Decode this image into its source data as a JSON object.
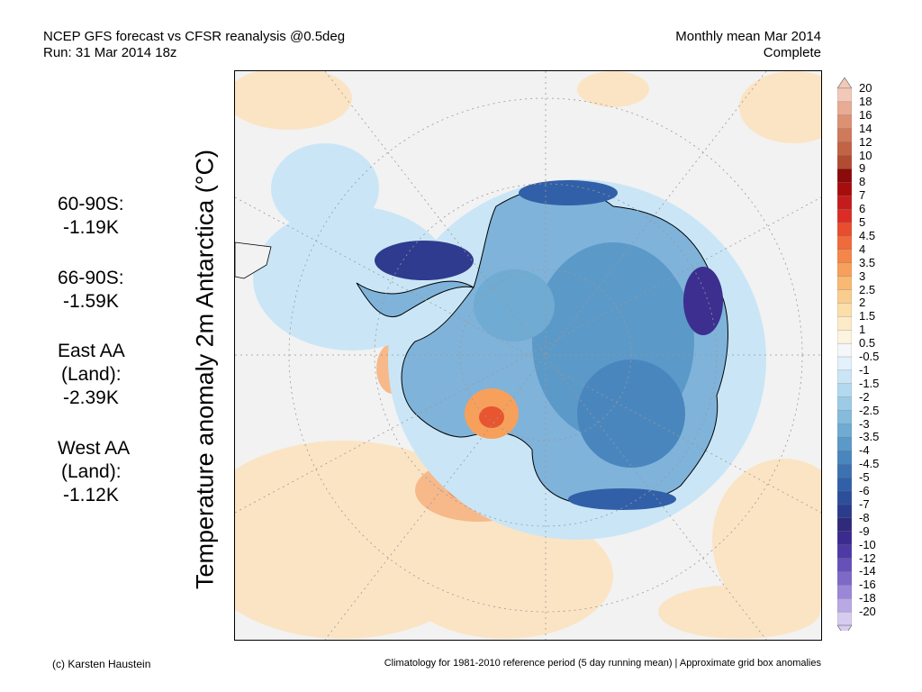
{
  "header": {
    "title_line1": "NCEP GFS forecast vs CFSR reanalysis @0.5deg",
    "title_line2": "Run: 31 Mar 2014 18z",
    "period_line1": "Monthly mean Mar 2014",
    "period_line2": "Complete"
  },
  "axis_label": "Temperature anomaly 2m Antarctica (°C)",
  "stats": [
    {
      "lines": [
        "60-90S:",
        "-1.19K"
      ]
    },
    {
      "lines": [
        "66-90S:",
        "-1.59K"
      ]
    },
    {
      "lines": [
        "East AA",
        "(Land):",
        "-2.39K"
      ]
    },
    {
      "lines": [
        "West AA",
        "(Land):",
        "-1.12K"
      ]
    }
  ],
  "colorbar": {
    "levels": [
      "20",
      "18",
      "16",
      "14",
      "12",
      "10",
      "9",
      "8",
      "7",
      "6",
      "5",
      "4.5",
      "4",
      "3.5",
      "3",
      "2.5",
      "2",
      "1.5",
      "1",
      "0.5",
      "-0.5",
      "-1",
      "-1.5",
      "-2",
      "-2.5",
      "-3",
      "-3.5",
      "-4",
      "-4.5",
      "-5",
      "-6",
      "-7",
      "-8",
      "-9",
      "-10",
      "-12",
      "-14",
      "-16",
      "-18",
      "-20"
    ],
    "colors": [
      "#f2c9b8",
      "#e8ab93",
      "#dc9173",
      "#cf7a5a",
      "#c26344",
      "#b14c32",
      "#8b0a0a",
      "#a80d0d",
      "#c41c1c",
      "#db2d25",
      "#e84d2f",
      "#f06a3b",
      "#f5864a",
      "#f7a05c",
      "#f9b874",
      "#facd8f",
      "#fbdeaa",
      "#fcebc6",
      "#fdf4df",
      "#f4f6f8",
      "#e2f1fb",
      "#cae6f6",
      "#b3d9ef",
      "#9ccbe6",
      "#85bbdc",
      "#6fabd2",
      "#5b99c8",
      "#4a86be",
      "#3c72b2",
      "#3260a8",
      "#2c4e9b",
      "#2c3c8c",
      "#2f2a7c",
      "#3b2b8f",
      "#4e3aa5",
      "#6650b9",
      "#7e69c9",
      "#9a87d7",
      "#b8a9e4",
      "#d6ccf0"
    ]
  },
  "footer": {
    "left": "(c) Karsten Haustein",
    "right": "Climatology for 1981-2010 reference period (5 day running mean) | Approximate grid box anomalies"
  }
}
